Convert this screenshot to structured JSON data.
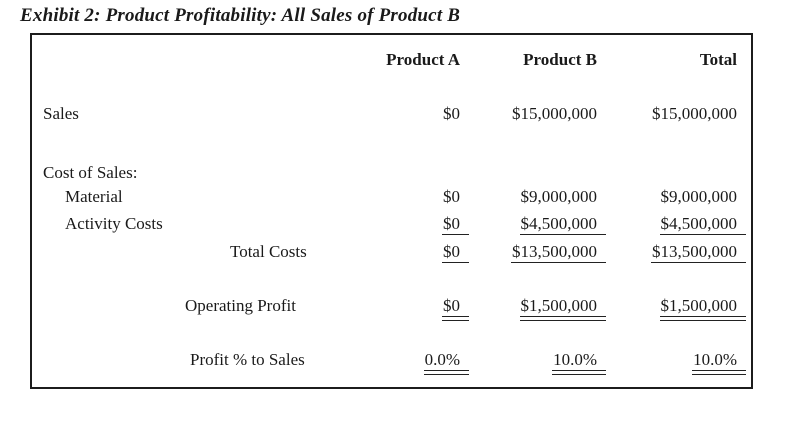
{
  "title": "Exhibit 2: Product Profitability: All Sales of Product B",
  "colors": {
    "text": "#1a1a1a",
    "border": "#1c1c1c",
    "background": "#ffffff"
  },
  "table": {
    "columns": [
      "Product A",
      "Product B",
      "Total"
    ],
    "rows": [
      {
        "label": "Sales",
        "values": [
          "$0",
          "$15,000,000",
          "$15,000,000"
        ],
        "underline": "none"
      },
      {
        "label": "Cost of Sales:",
        "values": [
          "",
          "",
          ""
        ],
        "underline": "none"
      },
      {
        "label": "Material",
        "values": [
          "$0",
          "$9,000,000",
          "$9,000,000"
        ],
        "underline": "none"
      },
      {
        "label": "Activity Costs",
        "values": [
          "$0",
          "$4,500,000",
          "$4,500,000"
        ],
        "underline": "single"
      },
      {
        "label": "Total Costs",
        "values": [
          "$0",
          "$13,500,000",
          "$13,500,000"
        ],
        "underline": "single"
      },
      {
        "label": "Operating Profit",
        "values": [
          "$0",
          "$1,500,000",
          "$1,500,000"
        ],
        "underline": "double"
      },
      {
        "label": "Profit % to Sales",
        "values": [
          "0.0%",
          "10.0%",
          "10.0%"
        ],
        "underline": "double"
      }
    ]
  }
}
